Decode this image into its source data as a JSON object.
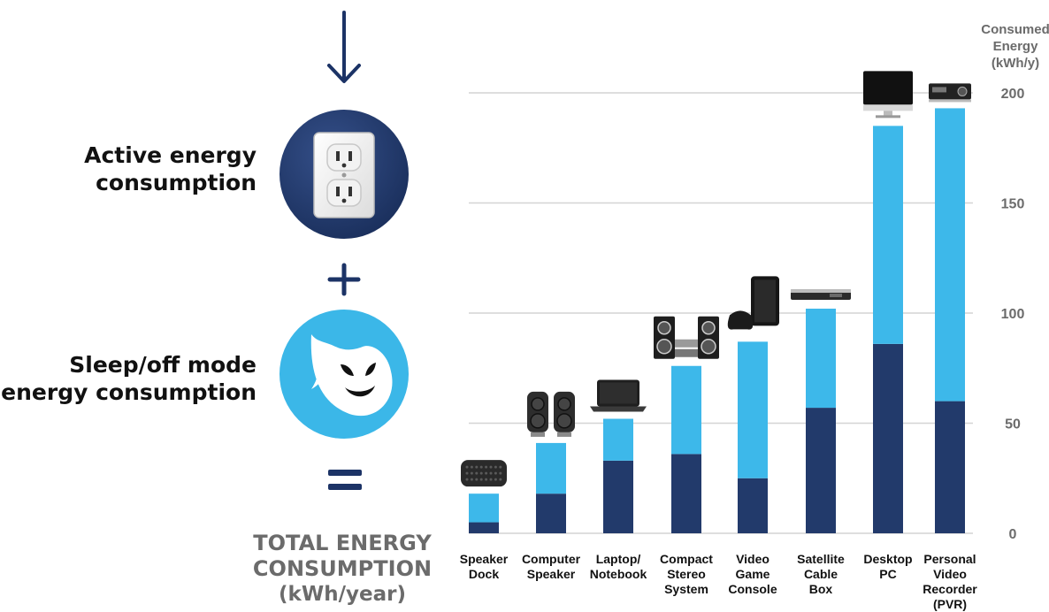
{
  "left_panel": {
    "active_label_lines": [
      "Active energy",
      "consumption"
    ],
    "sleep_label_lines": [
      "Sleep/off mode",
      "energy consumption"
    ],
    "total_label_lines": [
      "TOTAL ENERGY",
      "CONSUMPTION",
      "(kWh/year)"
    ],
    "operator_plus": "+",
    "operator_equals": "=",
    "icons": [
      "down-arrow-icon",
      "power-outlet-icon",
      "ghost-icon"
    ]
  },
  "chart_data": {
    "type": "bar",
    "stacked": true,
    "axis_title_lines": [
      "Consumed",
      "Energy",
      "(kWh/y)"
    ],
    "ylim": [
      0,
      200
    ],
    "yticks": [
      0,
      50,
      100,
      150,
      200
    ],
    "grid": true,
    "y_axis_position": "right",
    "categories": [
      [
        "Speaker",
        "Dock"
      ],
      [
        "Computer",
        "Speaker"
      ],
      [
        "Laptop/",
        "Notebook"
      ],
      [
        "Compact",
        "Stereo",
        "System"
      ],
      [
        "Video",
        "Game",
        "Console"
      ],
      [
        "Satellite",
        "Cable",
        "Box"
      ],
      [
        "Desktop",
        "PC"
      ],
      [
        "Personal",
        "Video",
        "Recorder",
        "(PVR)"
      ]
    ],
    "series": [
      {
        "values": [
          5,
          18,
          33,
          36,
          25,
          57,
          86,
          60
        ],
        "color": "#223a6b"
      },
      {
        "values": [
          13,
          23,
          19,
          40,
          62,
          45,
          99,
          133
        ],
        "color": "#3db8ea"
      }
    ],
    "device_icons": [
      "speaker-dock-icon",
      "computer-speaker-icon",
      "laptop-icon",
      "stereo-system-icon",
      "game-console-icon",
      "cable-box-icon",
      "desktop-monitor-icon",
      "pvr-icon"
    ]
  }
}
